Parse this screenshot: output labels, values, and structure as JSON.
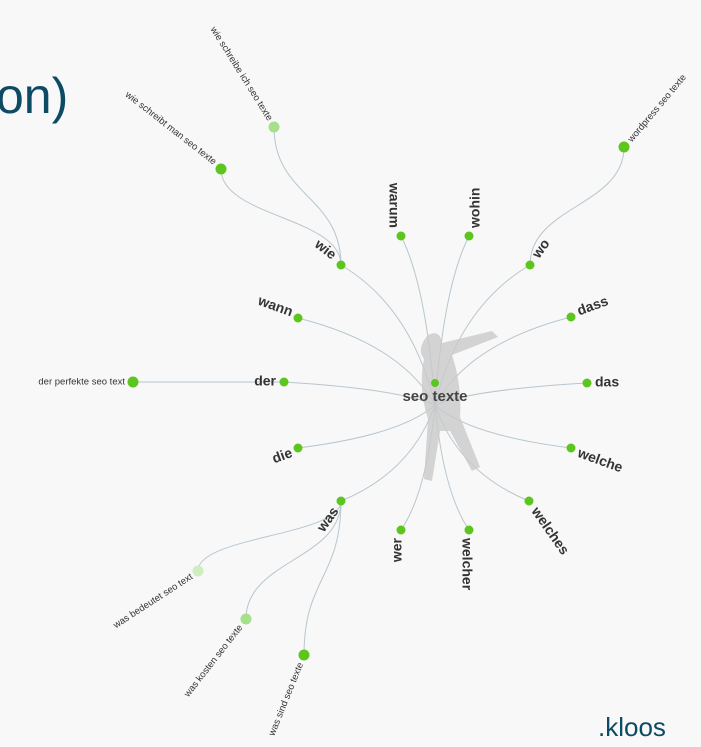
{
  "title_fragment": "on)",
  "center": "seo texte",
  "branches": [
    {
      "label": "wie",
      "children": [
        "wie schreibe ich seo texte",
        "wie schreibt man seo texte"
      ]
    },
    {
      "label": "warum",
      "children": []
    },
    {
      "label": "wohin",
      "children": []
    },
    {
      "label": "wo",
      "children": [
        "wordpress seo texte"
      ]
    },
    {
      "label": "wann",
      "children": []
    },
    {
      "label": "dass",
      "children": []
    },
    {
      "label": "der",
      "children": [
        "der perfekte seo text"
      ]
    },
    {
      "label": "das",
      "children": []
    },
    {
      "label": "die",
      "children": []
    },
    {
      "label": "welche",
      "children": []
    },
    {
      "label": "was",
      "children": [
        "was bedeutet seo text",
        "was kosten seo texte",
        "was sind seo texte"
      ]
    },
    {
      "label": "wer",
      "children": []
    },
    {
      "label": "welcher",
      "children": []
    },
    {
      "label": "welches",
      "children": []
    }
  ],
  "logo": ".kloos"
}
